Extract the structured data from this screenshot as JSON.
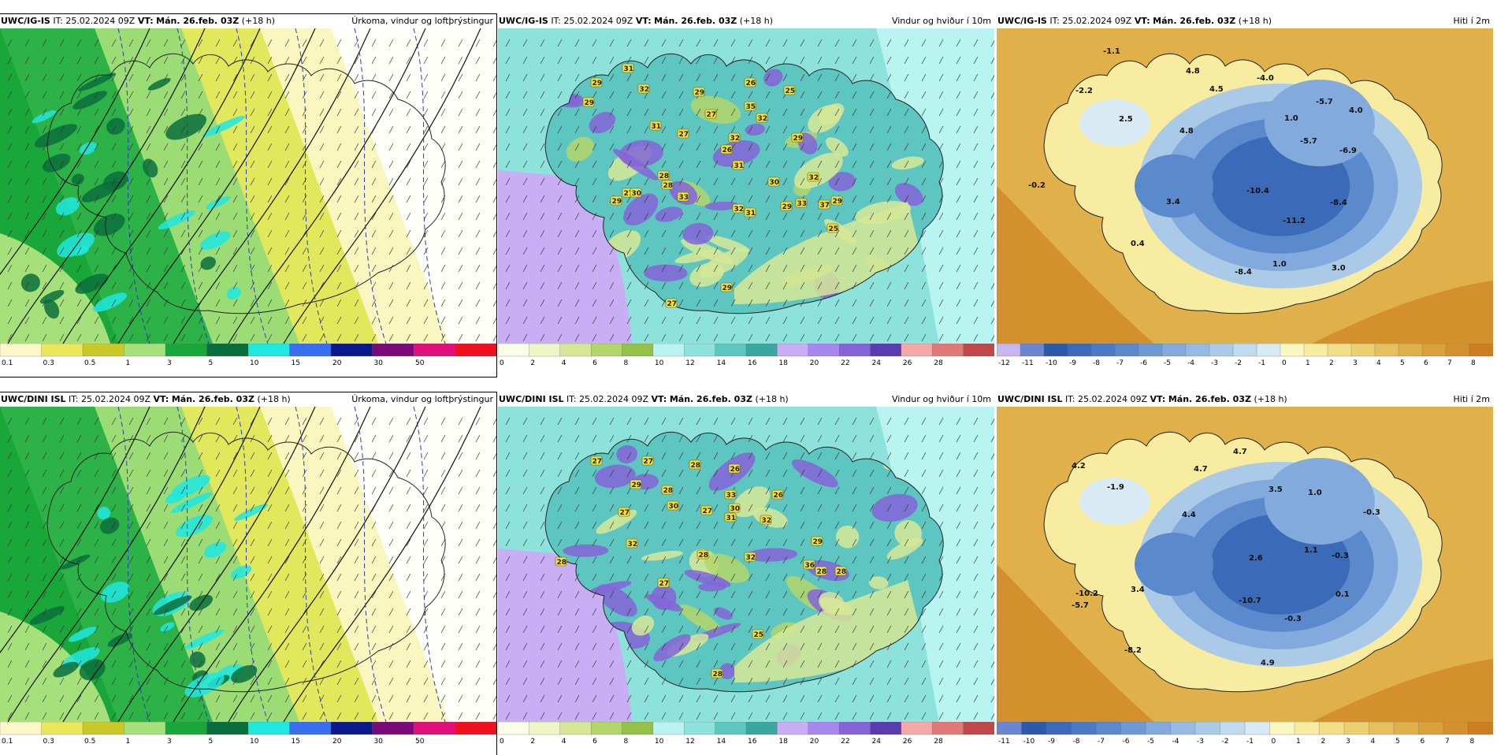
{
  "rows": [
    {
      "id": "igis",
      "panels": [
        {
          "kind": "precip",
          "model": "UWC/IG-IS",
          "run": "IT: 25.02.2024 09Z",
          "vt_label": "VT:",
          "valid": "Mán. 26.feb. 03Z",
          "offset": "(+18 h)",
          "title": "Úrkoma, vindur og loftþrýstingur",
          "legend_ticks": [
            "0.1",
            "0.3",
            "0.5",
            "1",
            "3",
            "5",
            "10",
            "15",
            "20",
            "30",
            "50"
          ],
          "legend_colors": [
            "#fbf7c8",
            "#e8e85a",
            "#c9c92a",
            "#a6e07a",
            "#1aa73a",
            "#0a6e3c",
            "#1ee8e0",
            "#3a6ef0",
            "#0a1a8a",
            "#7a0a7a",
            "#e0107a",
            "#f01020"
          ],
          "labels": []
        },
        {
          "kind": "wind",
          "model": "UWC/IG-IS",
          "run": "IT: 25.02.2024 09Z",
          "vt_label": "VT:",
          "valid": "Mán. 26.feb. 03Z",
          "offset": "(+18 h)",
          "title": "Vindur og hviður í 10m",
          "legend_ticks": [
            "0",
            "2",
            "4",
            "6",
            "8",
            "10",
            "12",
            "14",
            "16",
            "18",
            "20",
            "22",
            "24",
            "26",
            "28"
          ],
          "legend_colors": [
            "#fafde8",
            "#eef6c4",
            "#d6e896",
            "#b4d56a",
            "#92c24a",
            "#b8f4f0",
            "#8ee2dc",
            "#5ec6c0",
            "#3aa6a0",
            "#c8aef4",
            "#a688ec",
            "#8464d8",
            "#5a3cb0",
            "#f4a8a8",
            "#e07878",
            "#c04848"
          ],
          "gust_labels": [
            "31",
            "29",
            "32",
            "29",
            "29",
            "26",
            "25",
            "27",
            "31",
            "35",
            "32",
            "29",
            "27",
            "26",
            "32",
            "28",
            "31",
            "32",
            "30",
            "28",
            "33",
            "29",
            "27",
            "30",
            "32",
            "31",
            "29",
            "33",
            "37",
            "29",
            "25",
            "29",
            "27"
          ]
        },
        {
          "kind": "temp",
          "model": "UWC/IG-IS",
          "run": "IT: 25.02.2024 09Z",
          "vt_label": "VT:",
          "valid": "Mán. 26.feb. 03Z",
          "offset": "(+18 h)",
          "title": "Hiti í 2m",
          "legend_ticks": [
            "-12",
            "-11",
            "-10",
            "-9",
            "-8",
            "-7",
            "-6",
            "-5",
            "-4",
            "-3",
            "-2",
            "-1",
            "0",
            "1",
            "2",
            "3",
            "4",
            "5",
            "6",
            "7",
            "8"
          ],
          "legend_colors": [
            "#c8b6f0",
            "#6a86d0",
            "#2a5aa8",
            "#3a6ab8",
            "#4a7ac4",
            "#5a8acc",
            "#6e9ad4",
            "#82aadc",
            "#96bae2",
            "#aacae8",
            "#c0daee",
            "#d8eaf2",
            "#fbf7c0",
            "#f8eca0",
            "#f2de86",
            "#ecd070",
            "#e6c05c",
            "#e0b04a",
            "#daa03a",
            "#d4902c",
            "#cc7e20"
          ],
          "labels": [
            "-1.1",
            "-2.2",
            "2.5",
            "4.8",
            "4.5",
            "4.8",
            "-4.0",
            "-5.7",
            "4.0",
            "1.0",
            "-5.7",
            "-6.9",
            "-0.2",
            "3.4",
            "-10.4",
            "-11.2",
            "-8.4",
            "0.4",
            "1.0",
            "3.0",
            "-8.4"
          ]
        }
      ]
    },
    {
      "id": "dini",
      "panels": [
        {
          "kind": "precip",
          "model": "UWC/DINI ISL",
          "run": "IT: 25.02.2024 09Z",
          "vt_label": "VT:",
          "valid": "Mán. 26.feb. 03Z",
          "offset": "(+18 h)",
          "title": "Úrkoma, vindur og loftþrýstingur",
          "legend_ticks": [
            "0.1",
            "0.3",
            "0.5",
            "1",
            "3",
            "5",
            "10",
            "15",
            "20",
            "30",
            "50"
          ],
          "legend_colors": [
            "#fbf7c8",
            "#e8e85a",
            "#c9c92a",
            "#a6e07a",
            "#1aa73a",
            "#0a6e3c",
            "#1ee8e0",
            "#3a6ef0",
            "#0a1a8a",
            "#7a0a7a",
            "#e0107a",
            "#f01020"
          ],
          "labels": []
        },
        {
          "kind": "wind",
          "model": "UWC/DINI ISL",
          "run": "IT: 25.02.2024 09Z",
          "vt_label": "VT:",
          "valid": "Mán. 26.feb. 03Z",
          "offset": "(+18 h)",
          "title": "Vindur og hviður í 10m",
          "legend_ticks": [
            "0",
            "2",
            "4",
            "6",
            "8",
            "10",
            "12",
            "14",
            "16",
            "18",
            "20",
            "22",
            "24",
            "26",
            "28"
          ],
          "legend_colors": [
            "#fafde8",
            "#eef6c4",
            "#d6e896",
            "#b4d56a",
            "#92c24a",
            "#b8f4f0",
            "#8ee2dc",
            "#5ec6c0",
            "#3aa6a0",
            "#c8aef4",
            "#a688ec",
            "#8464d8",
            "#5a3cb0",
            "#f4a8a8",
            "#e07878",
            "#c04848"
          ],
          "gust_labels": [
            "27",
            "27",
            "28",
            "26",
            "29",
            "28",
            "33",
            "26",
            "30",
            "27",
            "32",
            "30",
            "31",
            "27",
            "32",
            "28",
            "29",
            "32",
            "36",
            "28",
            "28",
            "27",
            "28",
            "25",
            "28"
          ]
        },
        {
          "kind": "temp",
          "model": "UWC/DINI ISL",
          "run": "IT: 25.02.2024 09Z",
          "vt_label": "VT:",
          "valid": "Mán. 26.feb. 03Z",
          "offset": "(+18 h)",
          "title": "Hiti í 2m",
          "legend_ticks": [
            "-11",
            "-10",
            "-9",
            "-8",
            "-7",
            "-6",
            "-5",
            "-4",
            "-3",
            "-2",
            "-1",
            "0",
            "1",
            "2",
            "3",
            "4",
            "5",
            "6",
            "7",
            "8"
          ],
          "legend_colors": [
            "#6a86d0",
            "#2a5aa8",
            "#3a6ab8",
            "#4a7ac4",
            "#5a8acc",
            "#6e9ad4",
            "#82aadc",
            "#96bae2",
            "#aacae8",
            "#c0daee",
            "#d8eaf2",
            "#fbf7c0",
            "#f8eca0",
            "#f2de86",
            "#ecd070",
            "#e6c05c",
            "#e0b04a",
            "#daa03a",
            "#d4902c",
            "#cc7e20"
          ],
          "labels": [
            "4.2",
            "-1.9",
            "4.7",
            "4.7",
            "3.5",
            "1.0",
            "4.4",
            "1.1",
            "2.6",
            "-0.3",
            "-0.3",
            "3.4",
            "-10.2",
            "-5.7",
            "-10.7",
            "0.1",
            "-8.2",
            "-0.3",
            "4.9"
          ]
        }
      ]
    }
  ]
}
